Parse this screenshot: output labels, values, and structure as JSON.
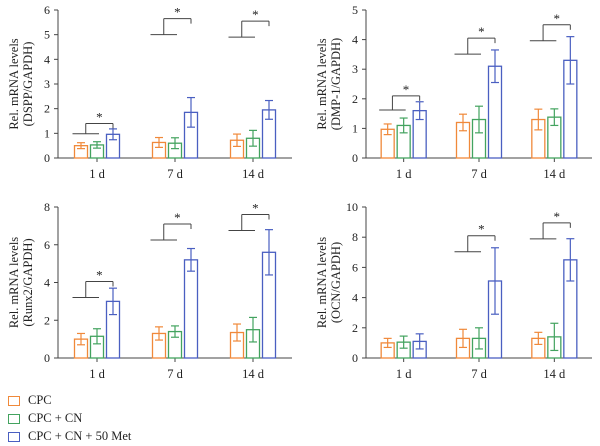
{
  "colors": {
    "cpc": "#f0893a",
    "cpc_cn": "#43a35f",
    "cpc_cn_met": "#4a5fc1",
    "axis": "#444444"
  },
  "legend": {
    "items": [
      {
        "label": "CPC",
        "color": "#f0893a"
      },
      {
        "label": "CPC + CN",
        "color": "#43a35f"
      },
      {
        "label": "CPC + CN + 50 Met",
        "color": "#4a5fc1"
      }
    ]
  },
  "chart_data": [
    {
      "type": "bar",
      "ylabel_line1": "Rel. mRNA levels",
      "ylabel_line2": "(DSPP/GAPDH)",
      "categories": [
        "1 d",
        "7 d",
        "14 d"
      ],
      "ylim": [
        0,
        6
      ],
      "yticks": [
        0,
        1,
        2,
        3,
        4,
        5,
        6
      ],
      "series": [
        {
          "name": "CPC",
          "values": [
            0.5,
            0.63,
            0.72
          ],
          "errors": [
            0.12,
            0.2,
            0.25
          ]
        },
        {
          "name": "CPC + CN",
          "values": [
            0.53,
            0.6,
            0.8
          ],
          "errors": [
            0.13,
            0.22,
            0.32
          ]
        },
        {
          "name": "CPC + CN + 50 Met",
          "values": [
            0.96,
            1.85,
            1.95
          ],
          "errors": [
            0.22,
            0.6,
            0.38
          ]
        }
      ],
      "significance": [
        {
          "category": 0,
          "label": "*",
          "bracket_y": 1.4
        },
        {
          "category": 1,
          "label": "*",
          "bracket_y": 5.65
        },
        {
          "category": 2,
          "label": "*",
          "bracket_y": 5.55
        }
      ]
    },
    {
      "type": "bar",
      "ylabel_line1": "Rel. mRNA levels",
      "ylabel_line2": "(DMP-1/GAPDH)",
      "categories": [
        "1 d",
        "7 d",
        "14 d"
      ],
      "ylim": [
        0,
        5
      ],
      "yticks": [
        0,
        1,
        2,
        3,
        4,
        5
      ],
      "series": [
        {
          "name": "CPC",
          "values": [
            0.97,
            1.2,
            1.3
          ],
          "errors": [
            0.18,
            0.28,
            0.35
          ]
        },
        {
          "name": "CPC + CN",
          "values": [
            1.1,
            1.3,
            1.38
          ],
          "errors": [
            0.25,
            0.45,
            0.28
          ]
        },
        {
          "name": "CPC + CN + 50 Met",
          "values": [
            1.6,
            3.1,
            3.3
          ],
          "errors": [
            0.3,
            0.55,
            0.8
          ]
        }
      ],
      "significance": [
        {
          "category": 0,
          "label": "*",
          "bracket_y": 2.1
        },
        {
          "category": 1,
          "label": "*",
          "bracket_y": 4.05
        },
        {
          "category": 2,
          "label": "*",
          "bracket_y": 4.5
        }
      ]
    },
    {
      "type": "bar",
      "ylabel_line1": "Rel. mRNA levels",
      "ylabel_line2": "(Runx2/GAPDH)",
      "categories": [
        "1 d",
        "7 d",
        "14 d"
      ],
      "ylim": [
        0,
        8
      ],
      "yticks": [
        0,
        2,
        4,
        6,
        8
      ],
      "series": [
        {
          "name": "CPC",
          "values": [
            1.0,
            1.3,
            1.35
          ],
          "errors": [
            0.3,
            0.35,
            0.45
          ]
        },
        {
          "name": "CPC + CN",
          "values": [
            1.15,
            1.4,
            1.5
          ],
          "errors": [
            0.4,
            0.3,
            0.65
          ]
        },
        {
          "name": "CPC + CN + 50 Met",
          "values": [
            3.0,
            5.2,
            5.6
          ],
          "errors": [
            0.7,
            0.6,
            1.2
          ]
        }
      ],
      "significance": [
        {
          "category": 0,
          "label": "*",
          "bracket_y": 4.05
        },
        {
          "category": 1,
          "label": "*",
          "bracket_y": 7.1
        },
        {
          "category": 2,
          "label": "*",
          "bracket_y": 7.6
        }
      ]
    },
    {
      "type": "bar",
      "ylabel_line1": "Rel. mRNA levels",
      "ylabel_line2": "(OCN/GAPDH)",
      "categories": [
        "1 d",
        "7 d",
        "14 d"
      ],
      "ylim": [
        0,
        10
      ],
      "yticks": [
        0,
        2,
        4,
        6,
        8,
        10
      ],
      "series": [
        {
          "name": "CPC",
          "values": [
            1.0,
            1.3,
            1.3
          ],
          "errors": [
            0.3,
            0.6,
            0.4
          ]
        },
        {
          "name": "CPC + CN",
          "values": [
            1.05,
            1.3,
            1.4
          ],
          "errors": [
            0.4,
            0.7,
            0.9
          ]
        },
        {
          "name": "CPC + CN + 50 Met",
          "values": [
            1.1,
            5.1,
            6.5
          ],
          "errors": [
            0.5,
            2.2,
            1.4
          ]
        }
      ],
      "significance": [
        {
          "category": 1,
          "label": "*",
          "bracket_y": 8.1
        },
        {
          "category": 2,
          "label": "*",
          "bracket_y": 8.95
        }
      ]
    }
  ]
}
